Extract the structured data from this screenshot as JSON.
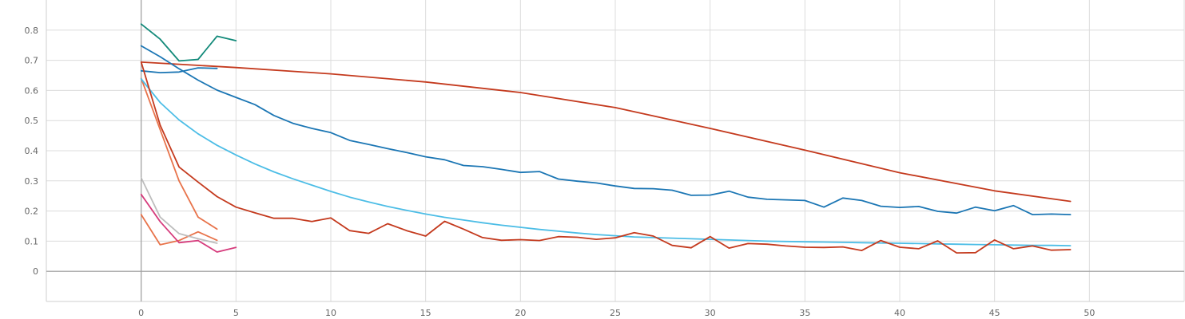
{
  "chart_data": {
    "type": "line",
    "title": "",
    "xlabel": "",
    "ylabel": "",
    "xlim": [
      -5,
      55
    ],
    "ylim": [
      -0.1,
      0.9
    ],
    "xticks": [
      0,
      5,
      10,
      15,
      20,
      25,
      30,
      35,
      40,
      45,
      50
    ],
    "yticks": [
      0,
      0.1,
      0.2,
      0.3,
      0.4,
      0.5,
      0.6,
      0.7,
      0.8
    ],
    "xtick_labels": [
      "0",
      "5",
      "10",
      "15",
      "20",
      "25",
      "30",
      "35",
      "40",
      "45",
      "50"
    ],
    "ytick_labels": [
      "0",
      "0.1",
      "0.2",
      "0.3",
      "0.4",
      "0.5",
      "0.6",
      "0.7",
      "0.8"
    ],
    "grid": true,
    "legend": "none",
    "series": [
      {
        "color": "#138a7a",
        "x": [
          0,
          1,
          2,
          3,
          4,
          5
        ],
        "y": [
          0.82,
          0.77,
          0.698,
          0.703,
          0.78,
          0.765
        ]
      },
      {
        "color": "#1b76b4",
        "x": [
          0,
          1,
          2,
          3,
          4
        ],
        "y": [
          0.665,
          0.659,
          0.661,
          0.675,
          0.673
        ]
      },
      {
        "color": "#e8734a",
        "x": [
          0,
          1,
          2,
          3,
          4
        ],
        "y": [
          0.188,
          0.088,
          0.102,
          0.131,
          0.103
        ]
      },
      {
        "color": "#e8734a",
        "x": [
          0,
          1,
          2,
          3,
          4
        ],
        "y": [
          0.64,
          0.47,
          0.3,
          0.18,
          0.14
        ]
      },
      {
        "color": "#bdbdbd",
        "x": [
          0,
          1,
          2,
          3,
          4
        ],
        "y": [
          0.31,
          0.18,
          0.125,
          0.108,
          0.093
        ]
      },
      {
        "color": "#d63b7c",
        "x": [
          0,
          1,
          2,
          3,
          4,
          5
        ],
        "y": [
          0.255,
          0.165,
          0.095,
          0.102,
          0.064,
          0.079
        ]
      },
      {
        "color": "#c43a1e",
        "x": [
          0,
          5,
          10,
          15,
          20,
          25,
          30,
          35,
          40,
          45,
          49
        ],
        "y": [
          0.694,
          0.676,
          0.655,
          0.628,
          0.593,
          0.543,
          0.474,
          0.402,
          0.327,
          0.267,
          0.232
        ]
      },
      {
        "color": "#1b76b4",
        "x": [
          0,
          1,
          2,
          3,
          4,
          5,
          6,
          7,
          8,
          9,
          10,
          11,
          12,
          13,
          14,
          15,
          16,
          17,
          18,
          19,
          20,
          21,
          22,
          23,
          24,
          25,
          26,
          27,
          28,
          29,
          30,
          31,
          32,
          33,
          34,
          35,
          36,
          37,
          38,
          39,
          40,
          41,
          42,
          43,
          44,
          45,
          46,
          47,
          48,
          49
        ],
        "y": [
          0.748,
          0.712,
          0.672,
          0.634,
          0.601,
          0.577,
          0.553,
          0.517,
          0.491,
          0.474,
          0.46,
          0.434,
          0.421,
          0.407,
          0.394,
          0.38,
          0.37,
          0.351,
          0.347,
          0.338,
          0.328,
          0.331,
          0.306,
          0.299,
          0.293,
          0.283,
          0.275,
          0.274,
          0.269,
          0.252,
          0.253,
          0.266,
          0.246,
          0.239,
          0.237,
          0.235,
          0.213,
          0.243,
          0.235,
          0.216,
          0.212,
          0.215,
          0.199,
          0.193,
          0.213,
          0.201,
          0.218,
          0.188,
          0.19,
          0.188
        ]
      },
      {
        "color": "#4cbde6",
        "x": [
          0,
          1,
          2,
          3,
          4,
          5,
          6,
          7,
          8,
          9,
          10,
          11,
          12,
          13,
          14,
          15,
          16,
          17,
          18,
          19,
          20,
          21,
          22,
          23,
          24,
          25,
          26,
          27,
          28,
          29,
          30,
          31,
          32,
          33,
          34,
          35,
          36,
          37,
          38,
          39,
          40,
          41,
          42,
          43,
          44,
          45,
          46,
          47,
          48,
          49
        ],
        "y": [
          0.638,
          0.56,
          0.502,
          0.456,
          0.418,
          0.386,
          0.356,
          0.33,
          0.307,
          0.286,
          0.265,
          0.246,
          0.23,
          0.215,
          0.202,
          0.19,
          0.179,
          0.17,
          0.161,
          0.153,
          0.146,
          0.139,
          0.133,
          0.127,
          0.122,
          0.118,
          0.114,
          0.112,
          0.11,
          0.108,
          0.106,
          0.104,
          0.102,
          0.1,
          0.099,
          0.098,
          0.097,
          0.096,
          0.095,
          0.094,
          0.093,
          0.092,
          0.091,
          0.09,
          0.089,
          0.088,
          0.087,
          0.086,
          0.086,
          0.085
        ]
      },
      {
        "color": "#c43a1e",
        "x": [
          0,
          1,
          2,
          3,
          4,
          5,
          6,
          7,
          8,
          9,
          10,
          11,
          12,
          13,
          14,
          15,
          16,
          17,
          18,
          19,
          20,
          21,
          22,
          23,
          24,
          25,
          26,
          27,
          28,
          29,
          30,
          31,
          32,
          33,
          34,
          35,
          36,
          37,
          38,
          39,
          40,
          41,
          42,
          43,
          44,
          45,
          46,
          47,
          48,
          49
        ],
        "y": [
          0.694,
          0.485,
          0.346,
          0.296,
          0.248,
          0.213,
          0.194,
          0.176,
          0.176,
          0.165,
          0.177,
          0.135,
          0.126,
          0.158,
          0.135,
          0.117,
          0.166,
          0.14,
          0.112,
          0.103,
          0.105,
          0.102,
          0.115,
          0.113,
          0.106,
          0.111,
          0.128,
          0.117,
          0.086,
          0.078,
          0.115,
          0.077,
          0.092,
          0.09,
          0.084,
          0.08,
          0.079,
          0.081,
          0.069,
          0.102,
          0.08,
          0.075,
          0.101,
          0.061,
          0.062,
          0.104,
          0.075,
          0.084,
          0.07,
          0.072
        ]
      }
    ]
  }
}
